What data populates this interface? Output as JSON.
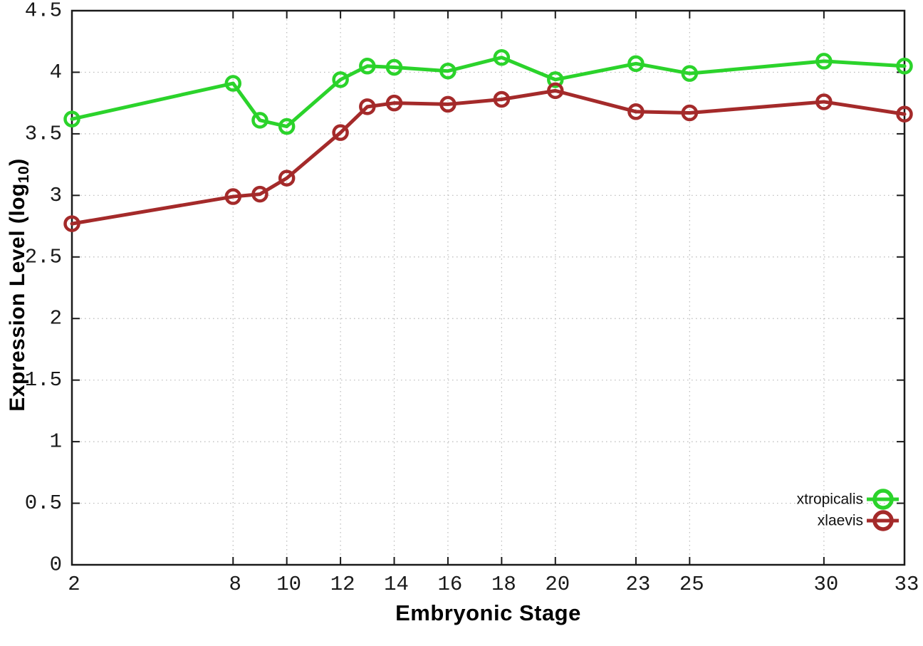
{
  "chart_data": {
    "type": "line",
    "title": "",
    "xlabel": "Embryonic Stage",
    "ylabel": "Expression Level (log10)",
    "ylabel_parts": {
      "main": "Expression Level (log",
      "sub": "10",
      "close": ")"
    },
    "x": [
      2,
      8,
      9,
      10,
      12,
      13,
      14,
      16,
      18,
      20,
      23,
      25,
      30,
      33
    ],
    "series": [
      {
        "name": "xtropicalis",
        "color": "#2bd32b",
        "values": [
          3.62,
          3.91,
          3.61,
          3.56,
          3.94,
          4.05,
          4.04,
          4.01,
          4.12,
          3.94,
          4.07,
          3.99,
          4.09,
          4.05
        ]
      },
      {
        "name": "xlaevis",
        "color": "#a42a2a",
        "values": [
          2.77,
          2.99,
          3.01,
          3.14,
          3.51,
          3.72,
          3.75,
          3.74,
          3.78,
          3.85,
          3.68,
          3.67,
          3.76,
          3.66
        ]
      }
    ],
    "x_tick_labels": [
      2,
      8,
      10,
      12,
      14,
      16,
      18,
      20,
      23,
      25,
      30,
      33
    ],
    "y_ticks": [
      0,
      0.5,
      1,
      1.5,
      2,
      2.5,
      3,
      3.5,
      4,
      4.5
    ],
    "xlim": [
      2,
      33
    ],
    "ylim": [
      0,
      4.5
    ],
    "grid": true,
    "legend": {
      "position": "bottom-right",
      "entries": [
        "xtropicalis",
        "xlaevis"
      ]
    },
    "axis_color": "#1a1a1a",
    "grid_color": "#b9b9b9",
    "tick_label_color": "#1a1a1a",
    "background_color": "#ffffff"
  }
}
